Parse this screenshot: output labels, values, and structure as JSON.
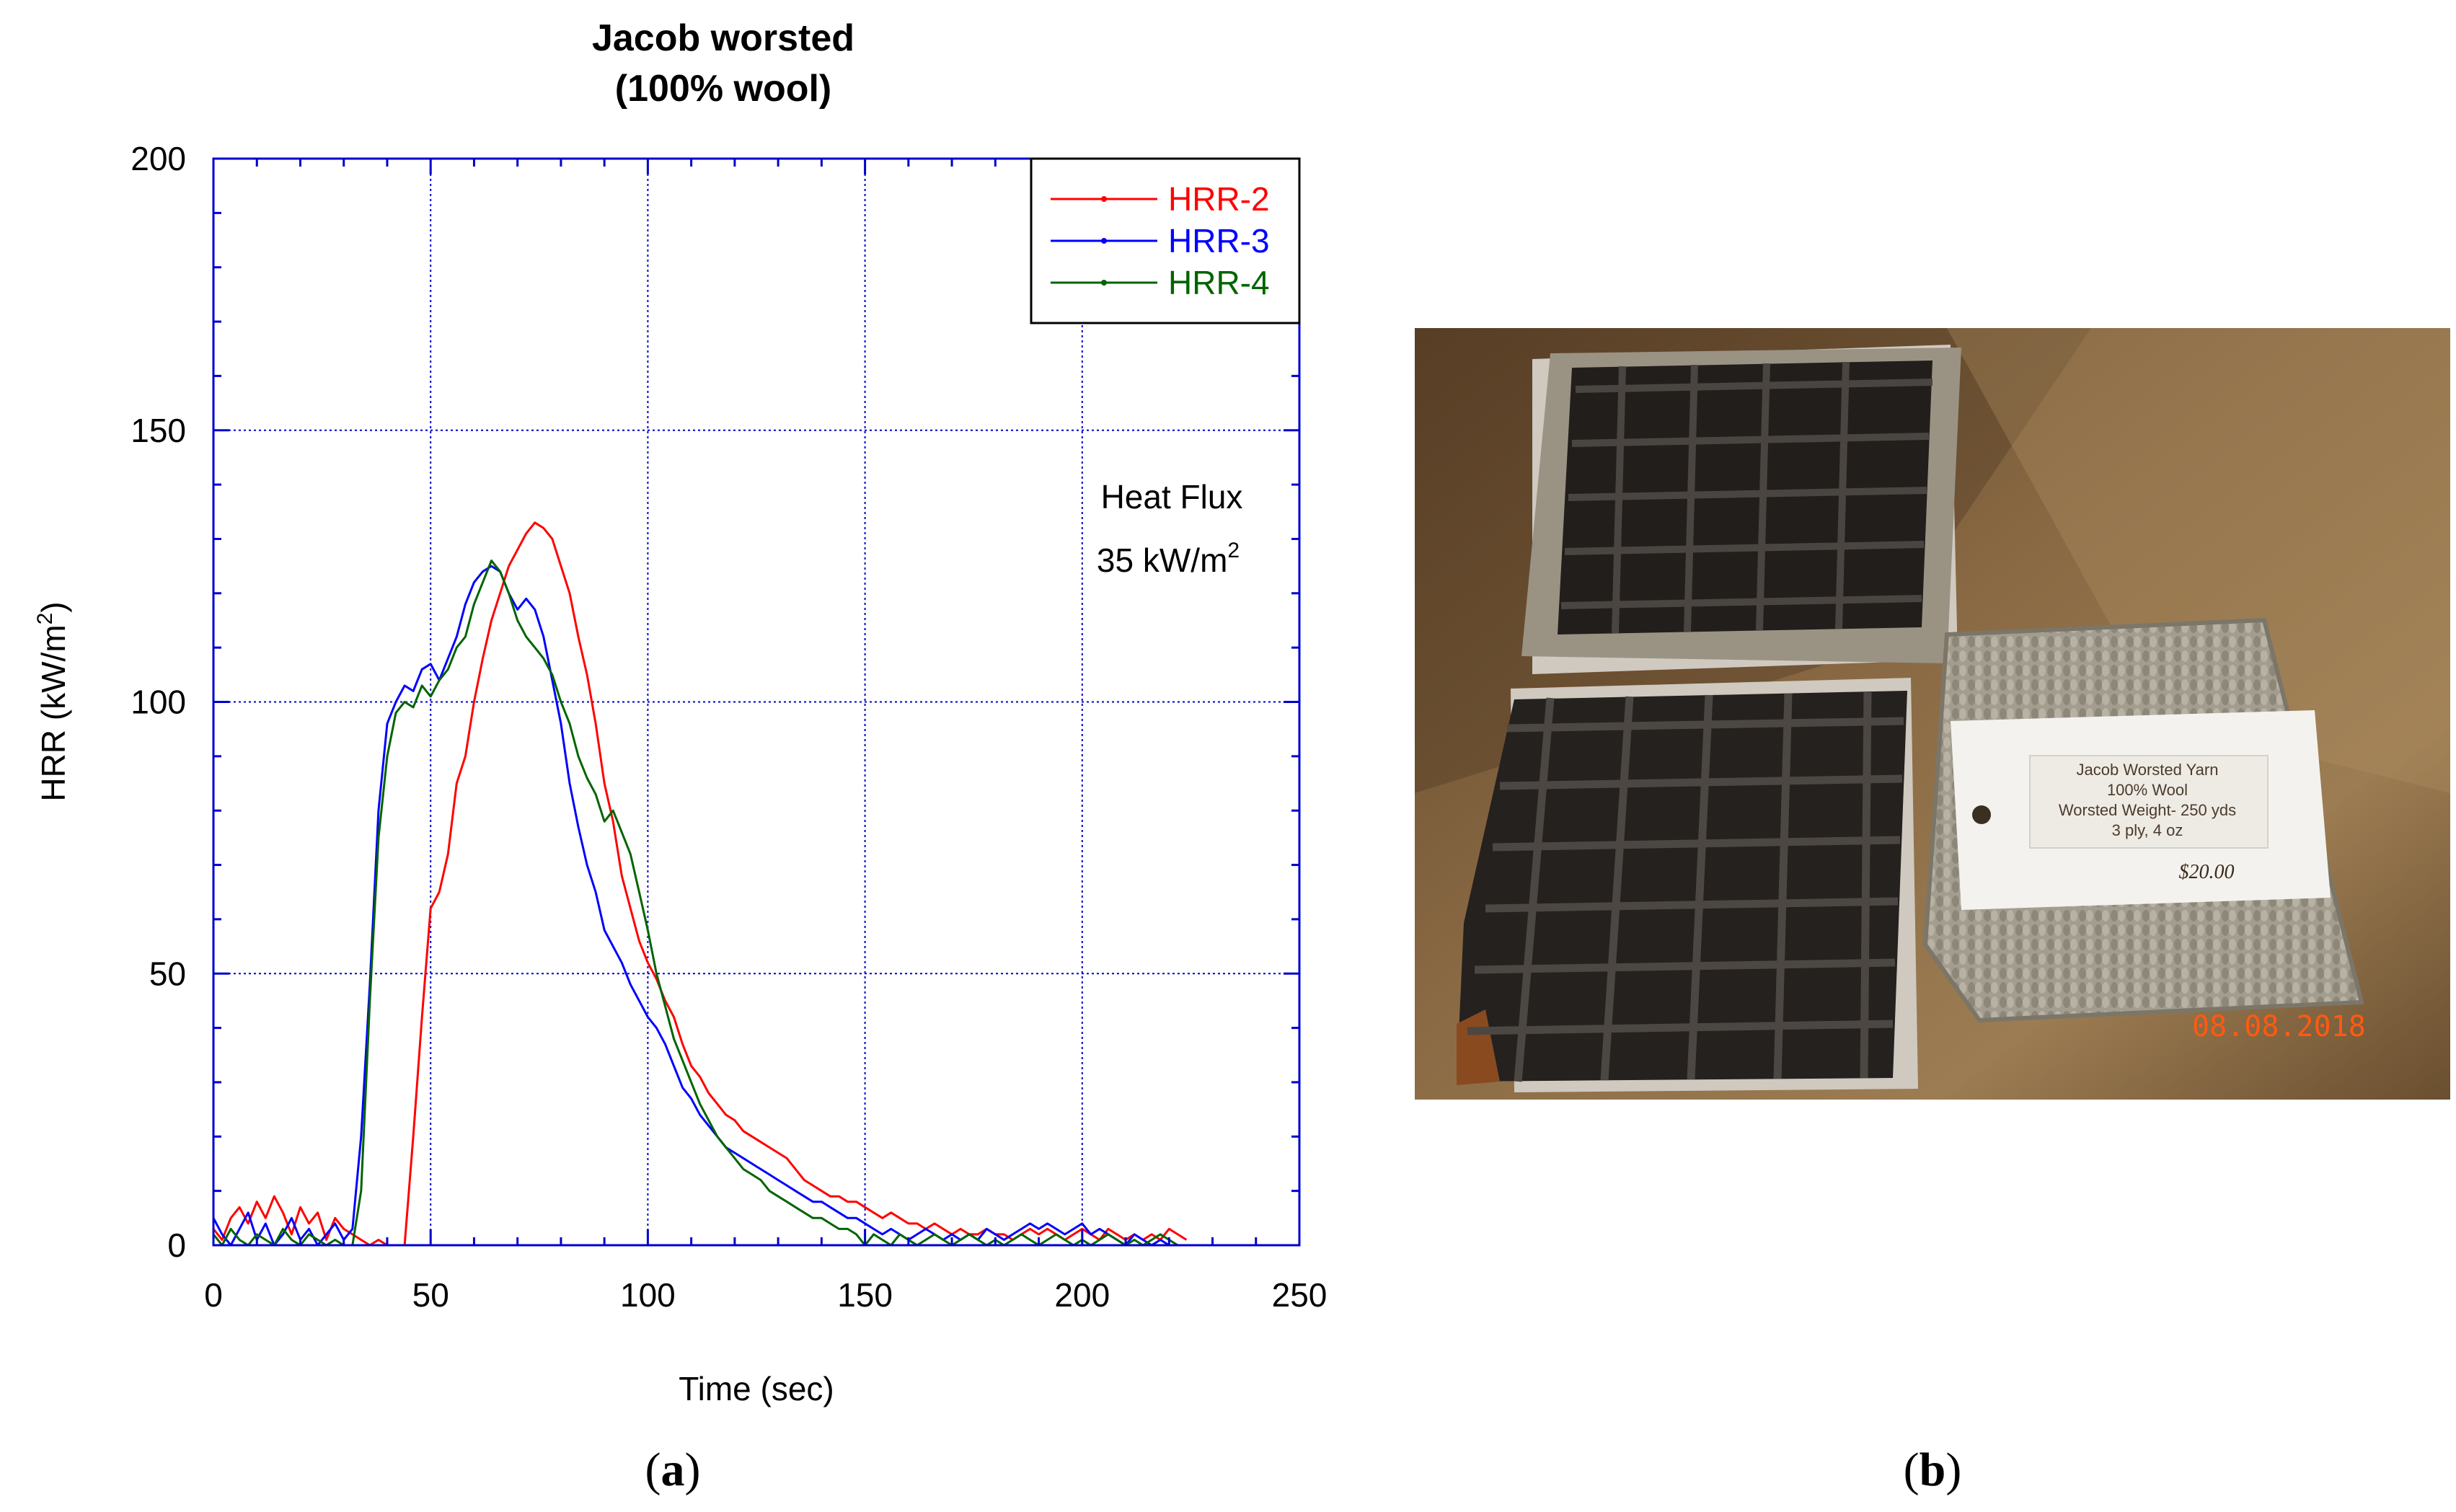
{
  "chart_data": {
    "type": "line",
    "title": "Jacob worsted",
    "subtitle": "(100% wool)",
    "xlabel": "Time (sec)",
    "ylabel_main": "HRR (kW/m",
    "ylabel_sup": "2",
    "ylabel_tail": ")",
    "xlim": [
      0,
      250
    ],
    "ylim": [
      0,
      200
    ],
    "xticks": [
      0,
      50,
      100,
      150,
      200,
      250
    ],
    "yticks": [
      0,
      50,
      100,
      150,
      200
    ],
    "grid": true,
    "legend_position": "top-right",
    "annotation_line1": "Heat Flux",
    "annotation_line2_main": "35 kW/m",
    "annotation_line2_sup": "2",
    "series": [
      {
        "name": "HRR-2",
        "color": "#ff0000",
        "x": [
          0,
          2,
          4,
          6,
          8,
          10,
          12,
          14,
          16,
          18,
          20,
          22,
          24,
          26,
          28,
          30,
          32,
          34,
          36,
          38,
          40,
          42,
          44,
          46,
          48,
          50,
          52,
          54,
          56,
          58,
          60,
          62,
          64,
          66,
          68,
          70,
          72,
          74,
          76,
          78,
          80,
          82,
          84,
          86,
          88,
          90,
          92,
          94,
          96,
          98,
          100,
          102,
          104,
          106,
          108,
          110,
          112,
          114,
          116,
          118,
          120,
          122,
          124,
          126,
          128,
          130,
          132,
          134,
          136,
          138,
          140,
          142,
          144,
          146,
          148,
          150,
          152,
          154,
          156,
          158,
          160,
          162,
          164,
          166,
          168,
          170,
          172,
          174,
          176,
          178,
          180,
          182,
          184,
          186,
          188,
          190,
          192,
          194,
          196,
          198,
          200,
          202,
          204,
          206,
          208,
          210,
          212,
          214,
          216,
          218,
          220,
          222,
          224
        ],
        "y": [
          3,
          1,
          5,
          7,
          4,
          8,
          5,
          9,
          6,
          2,
          7,
          4,
          6,
          1,
          5,
          3,
          2,
          1,
          0,
          1,
          0,
          0,
          0,
          20,
          42,
          62,
          65,
          72,
          85,
          90,
          100,
          108,
          115,
          120,
          125,
          128,
          131,
          133,
          132,
          130,
          125,
          120,
          112,
          105,
          96,
          85,
          78,
          68,
          62,
          56,
          52,
          49,
          45,
          42,
          37,
          33,
          31,
          28,
          26,
          24,
          23,
          21,
          20,
          19,
          18,
          17,
          16,
          14,
          12,
          11,
          10,
          9,
          9,
          8,
          8,
          7,
          6,
          5,
          6,
          5,
          4,
          4,
          3,
          4,
          3,
          2,
          3,
          2,
          2,
          3,
          2,
          2,
          1,
          2,
          3,
          2,
          3,
          2,
          1,
          2,
          3,
          2,
          1,
          3,
          2,
          1,
          2,
          1,
          2,
          1,
          3,
          2,
          1
        ]
      },
      {
        "name": "HRR-3",
        "color": "#0000ff",
        "x": [
          0,
          2,
          4,
          6,
          8,
          10,
          12,
          14,
          16,
          18,
          20,
          22,
          24,
          26,
          28,
          30,
          32,
          34,
          36,
          38,
          40,
          42,
          44,
          46,
          48,
          50,
          52,
          54,
          56,
          58,
          60,
          62,
          64,
          66,
          68,
          70,
          72,
          74,
          76,
          78,
          80,
          82,
          84,
          86,
          88,
          90,
          92,
          94,
          96,
          98,
          100,
          102,
          104,
          106,
          108,
          110,
          112,
          114,
          116,
          118,
          120,
          122,
          124,
          126,
          128,
          130,
          132,
          134,
          136,
          138,
          140,
          142,
          144,
          146,
          148,
          150,
          152,
          154,
          156,
          158,
          160,
          162,
          164,
          166,
          168,
          170,
          172,
          174,
          176,
          178,
          180,
          182,
          184,
          186,
          188,
          190,
          192,
          194,
          196,
          198,
          200,
          202,
          204,
          206,
          208,
          210,
          212,
          214,
          216,
          218,
          220
        ],
        "y": [
          5,
          2,
          0,
          3,
          6,
          1,
          4,
          0,
          2,
          5,
          1,
          3,
          0,
          2,
          4,
          1,
          3,
          20,
          48,
          80,
          96,
          100,
          103,
          102,
          106,
          107,
          104,
          108,
          112,
          118,
          122,
          124,
          125,
          124,
          120,
          117,
          119,
          117,
          112,
          104,
          96,
          85,
          77,
          70,
          65,
          58,
          55,
          52,
          48,
          45,
          42,
          40,
          37,
          33,
          29,
          27,
          24,
          22,
          20,
          18,
          17,
          16,
          15,
          14,
          13,
          12,
          11,
          10,
          9,
          8,
          8,
          7,
          6,
          5,
          5,
          4,
          3,
          2,
          3,
          2,
          1,
          2,
          3,
          2,
          1,
          2,
          1,
          2,
          1,
          3,
          2,
          1,
          2,
          3,
          4,
          3,
          4,
          3,
          2,
          3,
          4,
          2,
          3,
          2,
          1,
          0,
          2,
          1,
          0,
          1,
          0
        ]
      },
      {
        "name": "HRR-4",
        "color": "#006400",
        "x": [
          0,
          2,
          4,
          6,
          8,
          10,
          12,
          14,
          16,
          18,
          20,
          22,
          24,
          26,
          28,
          30,
          32,
          34,
          36,
          38,
          40,
          42,
          44,
          46,
          48,
          50,
          52,
          54,
          56,
          58,
          60,
          62,
          64,
          66,
          68,
          70,
          72,
          74,
          76,
          78,
          80,
          82,
          84,
          86,
          88,
          90,
          92,
          94,
          96,
          98,
          100,
          102,
          104,
          106,
          108,
          110,
          112,
          114,
          116,
          118,
          120,
          122,
          124,
          126,
          128,
          130,
          132,
          134,
          136,
          138,
          140,
          142,
          144,
          146,
          148,
          150,
          152,
          154,
          156,
          158,
          160,
          162,
          164,
          166,
          168,
          170,
          172,
          174,
          176,
          178,
          180,
          182,
          184,
          186,
          188,
          190,
          192,
          194,
          196,
          198,
          200,
          202,
          204,
          206,
          208,
          210,
          212,
          214,
          216,
          218,
          220,
          222
        ],
        "y": [
          2,
          0,
          3,
          1,
          0,
          2,
          1,
          0,
          3,
          1,
          0,
          2,
          1,
          0,
          1,
          0,
          0,
          10,
          45,
          75,
          90,
          98,
          100,
          99,
          103,
          101,
          104,
          106,
          110,
          112,
          118,
          122,
          126,
          124,
          120,
          115,
          112,
          110,
          108,
          105,
          100,
          96,
          90,
          86,
          83,
          78,
          80,
          76,
          72,
          65,
          58,
          50,
          44,
          38,
          34,
          30,
          26,
          23,
          20,
          18,
          16,
          14,
          13,
          12,
          10,
          9,
          8,
          7,
          6,
          5,
          5,
          4,
          3,
          3,
          2,
          0,
          2,
          1,
          0,
          2,
          1,
          0,
          1,
          2,
          1,
          0,
          1,
          2,
          1,
          0,
          1,
          0,
          1,
          2,
          1,
          0,
          1,
          2,
          1,
          0,
          1,
          0,
          1,
          2,
          1,
          0,
          1,
          0,
          1,
          2,
          1,
          0
        ]
      }
    ]
  },
  "photo": {
    "label_line1": "Jacob Worsted Yarn",
    "label_line2": "100% Wool",
    "label_line3": "Worsted Weight- 250 yds",
    "label_line4": "3 ply, 4 oz",
    "price": "$20.00",
    "date_stamp": "08.08.2018",
    "colors": {
      "background": "#7d5f3c",
      "char": "#1c1a18",
      "wool": "#a29c8e",
      "date": "#ff5a10"
    }
  },
  "captions": {
    "a": "a",
    "b": "b"
  }
}
